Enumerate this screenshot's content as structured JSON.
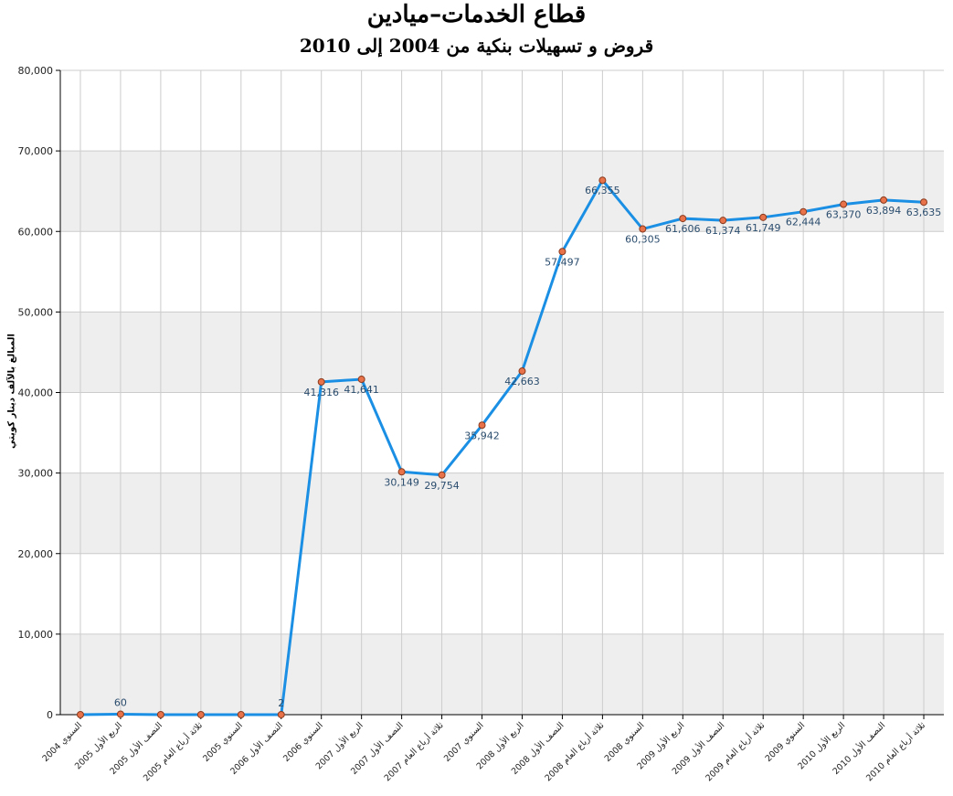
{
  "title": "قطاع الخدمات–ميادين",
  "subtitle": "قروض و تسهيلات بنكية من 2004 إلى 2010",
  "chart_data": {
    "type": "line",
    "title": "قطاع الخدمات–ميادين",
    "subtitle": "قروض و تسهيلات بنكية من 2004 إلى 2010",
    "ylabel": "المبالغ بالآلف دينار كويتي",
    "xlabel": "",
    "ylim": [
      0,
      80000
    ],
    "yticks": [
      0,
      10000,
      20000,
      30000,
      40000,
      50000,
      60000,
      70000,
      80000
    ],
    "ytick_labels": [
      "0",
      "10,000",
      "20,000",
      "30,000",
      "40,000",
      "50,000",
      "60,000",
      "70,000",
      "80,000"
    ],
    "grid": true,
    "line_color": "#1a8fe3",
    "marker_color": "#e8734a",
    "band_color": "#eeeeee",
    "categories": [
      "السنوي 2004",
      "الربع الأول 2005",
      "النصف الأول 2005",
      "ثلاثة أرباع العام 2005",
      "السنوي 2005",
      "النصف الأول 2006",
      "السنوي 2006",
      "الربع الأول 2007",
      "النصف الأول 2007",
      "ثلاثة أرباع العام 2007",
      "السنوي 2007",
      "الربع الأول 2008",
      "النصف الأول 2008",
      "ثلاثة أرباع العام 2008",
      "السنوي 2008",
      "الربع الأول 2009",
      "النصف الأول 2009",
      "ثلاثة أرباع العام 2009",
      "السنوي 2009",
      "الربع الأول 2010",
      "النصف الأول 2010",
      "ثلاثة أرباع العام 2010"
    ],
    "values": [
      0,
      60,
      0,
      0,
      0,
      2,
      41316,
      41641,
      30149,
      29754,
      35942,
      42663,
      57497,
      66355,
      60305,
      61606,
      61374,
      61749,
      62444,
      63370,
      63894,
      63635
    ],
    "data_labels": [
      "",
      "60",
      "",
      "",
      "",
      "2",
      "41,316",
      "41,641",
      "30,149",
      "29,754",
      "35,942",
      "42,663",
      "57,497",
      "66,355",
      "60,305",
      "61,606",
      "61,374",
      "61,749",
      "62,444",
      "63,370",
      "63,894",
      "63,635"
    ]
  }
}
